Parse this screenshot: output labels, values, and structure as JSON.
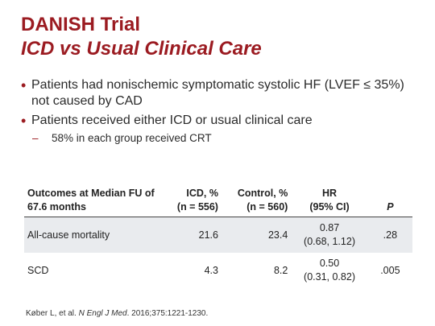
{
  "slide": {
    "title_line1": "DANISH Trial",
    "title_line2": "ICD vs Usual Clinical Care",
    "bullets": [
      {
        "text": "Patients had nonischemic symptomatic systolic HF (LVEF ≤ 35%) not caused by CAD"
      },
      {
        "text": "Patients received either ICD or usual clinical care"
      }
    ],
    "sub_bullet": "58% in each group received CRT",
    "bullet_icon": "bullet-dot",
    "accent_color": "#9b1b21"
  },
  "table": {
    "headers": {
      "outcome": [
        "Outcomes at Median FU of",
        "67.6 months"
      ],
      "icd": [
        "ICD, %",
        "(n = 556)"
      ],
      "control": [
        "Control, %",
        "(n = 560)"
      ],
      "hr": [
        "HR",
        "(95% CI)"
      ],
      "p": "P"
    },
    "rows": [
      {
        "outcome": "All-cause mortality",
        "icd": "21.6",
        "control": "23.4",
        "hr": "0.87",
        "ci": "(0.68, 1.12)",
        "p": ".28"
      },
      {
        "outcome": "SCD",
        "icd": "4.3",
        "control": "8.2",
        "hr": "0.50",
        "ci": "(0.31, 0.82)",
        "p": ".005"
      }
    ]
  },
  "citation": {
    "authors": "Køber L, et al. ",
    "journal": "N Engl J Med",
    "details": ". 2016;375:1221-1230."
  }
}
